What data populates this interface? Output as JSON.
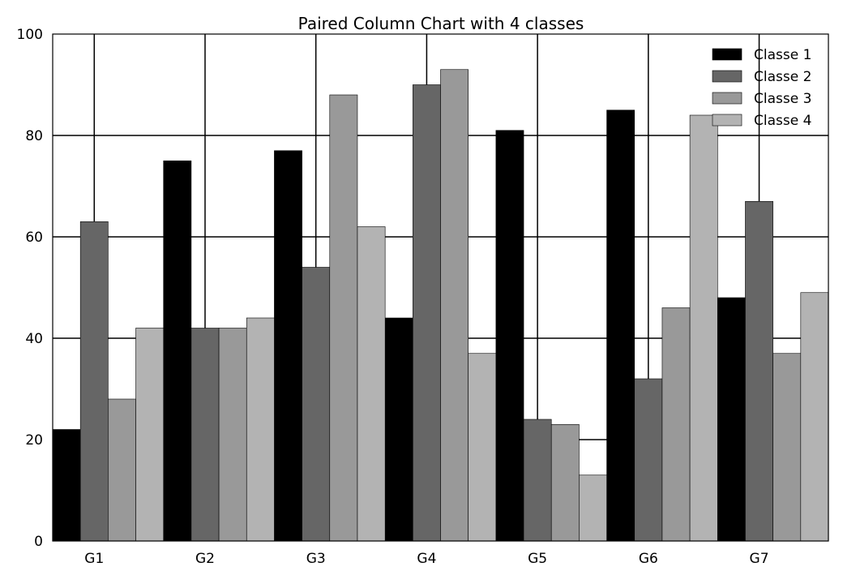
{
  "chart_data": {
    "type": "bar",
    "title": "Paired Column Chart with 4 classes",
    "xlabel": "",
    "ylabel": "",
    "categories": [
      "G1",
      "G2",
      "G3",
      "G4",
      "G5",
      "G6",
      "G7"
    ],
    "series": [
      {
        "name": "Classe 1",
        "color": "#000000",
        "values": [
          22,
          75,
          77,
          44,
          81,
          85,
          48
        ]
      },
      {
        "name": "Classe 2",
        "color": "#666666",
        "values": [
          63,
          42,
          54,
          90,
          24,
          32,
          67
        ]
      },
      {
        "name": "Classe 3",
        "color": "#999999",
        "values": [
          28,
          42,
          88,
          93,
          23,
          46,
          37
        ]
      },
      {
        "name": "Classe 4",
        "color": "#b3b3b3",
        "values": [
          42,
          44,
          62,
          37,
          13,
          84,
          49
        ]
      }
    ],
    "ylim": [
      0,
      100
    ],
    "yticks": [
      0,
      20,
      40,
      60,
      80,
      100
    ],
    "grid": true,
    "legend": "top-right"
  }
}
